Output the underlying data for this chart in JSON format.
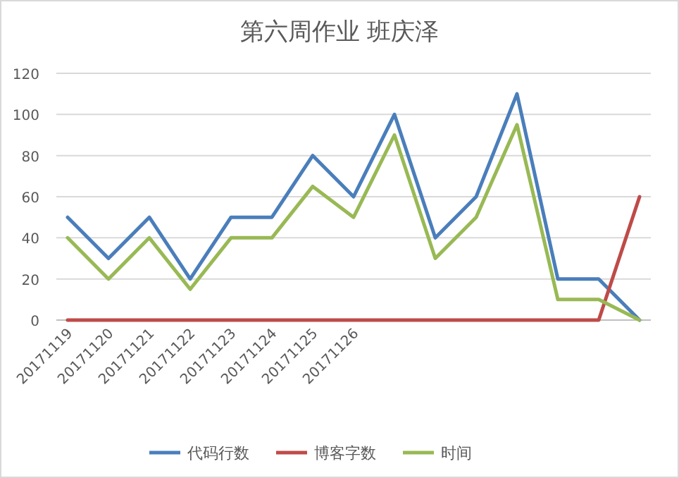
{
  "chart_data": {
    "type": "line",
    "title": "第六周作业 班庆泽",
    "categories": [
      "20171119",
      "20171120",
      "20171121",
      "20171122",
      "20171123",
      "20171124",
      "20171125",
      "20171126",
      null,
      null,
      null,
      null,
      null,
      null,
      null
    ],
    "series": [
      {
        "name": "代码行数",
        "color": "#4a7ebb",
        "values": [
          50,
          30,
          50,
          20,
          50,
          50,
          80,
          60,
          100,
          40,
          60,
          110,
          20,
          20,
          0
        ]
      },
      {
        "name": "博客字数",
        "color": "#be4b48",
        "values": [
          0,
          0,
          0,
          0,
          0,
          0,
          0,
          0,
          0,
          0,
          0,
          0,
          0,
          0,
          60
        ]
      },
      {
        "name": "时间",
        "color": "#98b954",
        "values": [
          40,
          20,
          40,
          15,
          40,
          40,
          65,
          50,
          90,
          30,
          50,
          95,
          10,
          10,
          0
        ]
      }
    ],
    "ylim": [
      0,
      120
    ],
    "yticks": [
      0,
      20,
      40,
      60,
      80,
      100,
      120
    ],
    "grid": "y",
    "legend": "bottom",
    "marker": "none",
    "line_style": "solid"
  }
}
